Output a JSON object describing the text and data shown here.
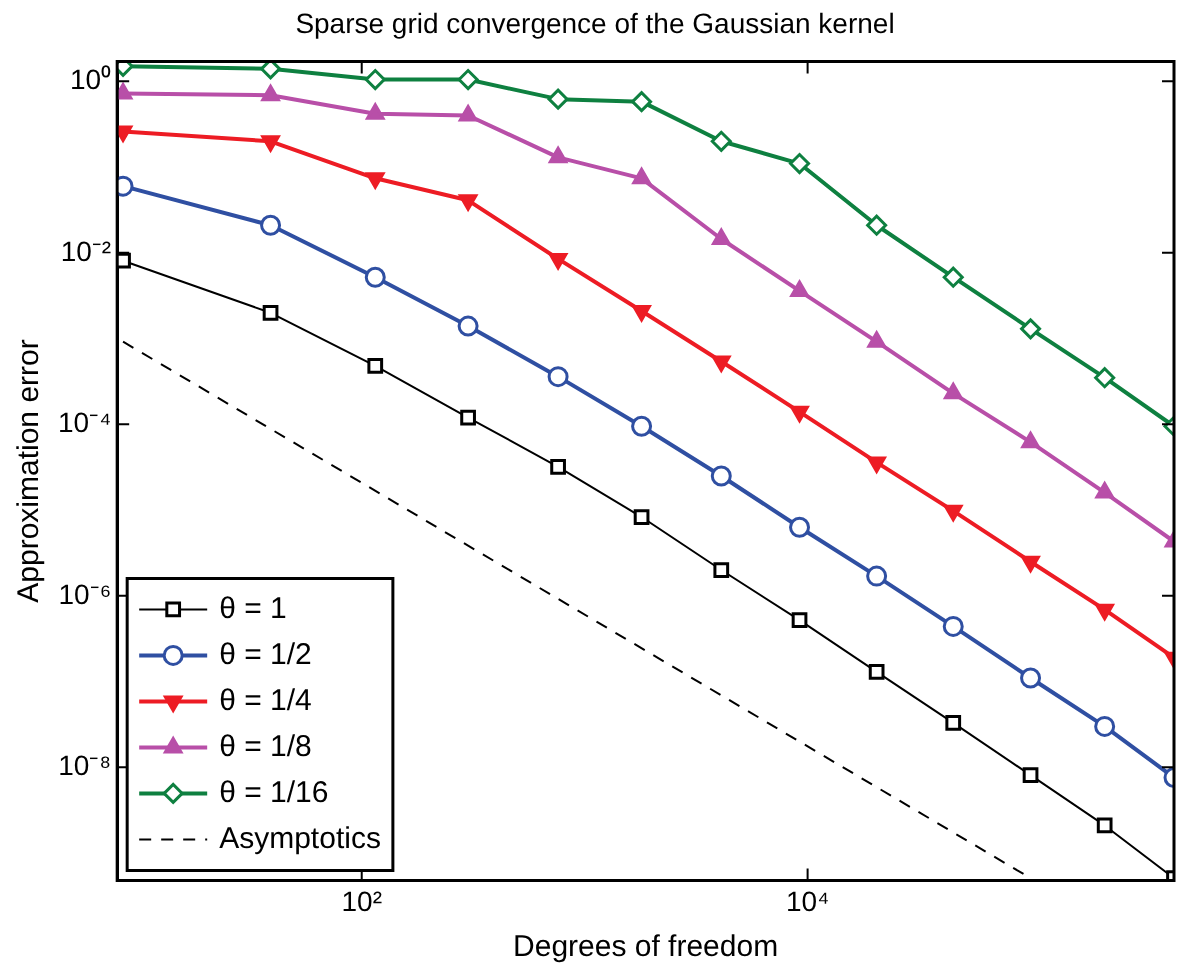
{
  "chart_data": {
    "type": "line",
    "title": "Sparse grid convergence of the Gaussian kernel",
    "xlabel": "Degrees of freedom",
    "ylabel": "Approximation error",
    "log": "xy",
    "grid": false,
    "legend": "bottom left",
    "x": [
      8.5,
      39,
      115,
      300,
      760,
      1800,
      4100,
      9200,
      20400,
      45000,
      100000,
      215000,
      440000
    ],
    "xlim": [
      8,
      440000
    ],
    "xticks": [
      {
        "value": 100,
        "label": "10²"
      },
      {
        "value": 10000,
        "label": "10⁴"
      }
    ],
    "ylim": [
      4.8e-10,
      1.7
    ],
    "yticks": [
      {
        "value": 1e-08,
        "label": "10⁻⁸"
      },
      {
        "value": 1e-06,
        "label": "10⁻⁶"
      },
      {
        "value": 0.0001,
        "label": "10⁻⁴"
      },
      {
        "value": 0.01,
        "label": "10⁻²"
      },
      {
        "value": 1,
        "label": "10⁰"
      }
    ],
    "series": [
      {
        "name": "θ = 1",
        "color": "#000000",
        "marker": "square",
        "line_style": "solid",
        "values": [
          0.0081,
          0.002,
          0.00048,
          0.00012,
          3.2e-05,
          8.3e-06,
          2e-06,
          5.2e-07,
          1.3e-07,
          3.3e-08,
          8.1e-09,
          2.1e-09,
          5.1e-10
        ]
      },
      {
        "name": "θ = 1/2",
        "color": "#2f4fa2",
        "marker": "circle",
        "line_style": "solid",
        "values": [
          0.06,
          0.021,
          0.0052,
          0.0014,
          0.00036,
          9.5e-05,
          2.5e-05,
          6.3e-06,
          1.7e-06,
          4.4e-07,
          1.1e-07,
          3e-08,
          7.6e-09
        ]
      },
      {
        "name": "θ = 1/4",
        "color": "#ed1c24",
        "marker": "triangle-down",
        "line_style": "solid",
        "values": [
          0.26,
          0.2,
          0.074,
          0.041,
          0.0085,
          0.0021,
          0.00054,
          0.00014,
          3.6e-05,
          9.8e-06,
          2.5e-06,
          6.9e-07,
          1.9e-07
        ]
      },
      {
        "name": "θ = 1/8",
        "color": "#b84fa8",
        "marker": "triangle",
        "line_style": "solid",
        "values": [
          0.72,
          0.69,
          0.42,
          0.4,
          0.13,
          0.074,
          0.0145,
          0.0036,
          0.00092,
          0.00023,
          6.2e-05,
          1.6e-05,
          4.3e-06
        ]
      },
      {
        "name": "θ = 1/16",
        "color": "#0e8040",
        "marker": "diamond",
        "line_style": "solid",
        "values": [
          1.5,
          1.4,
          1.05,
          1.05,
          0.62,
          0.58,
          0.2,
          0.11,
          0.021,
          0.0052,
          0.0013,
          0.00035,
          9.5e-05
        ]
      },
      {
        "name": "Asymptotics",
        "color": "#000000",
        "marker": "none",
        "line_style": "dashed",
        "x": [
          8.5,
          100000
        ],
        "values": [
          0.00092,
          5.1e-10
        ]
      }
    ]
  }
}
